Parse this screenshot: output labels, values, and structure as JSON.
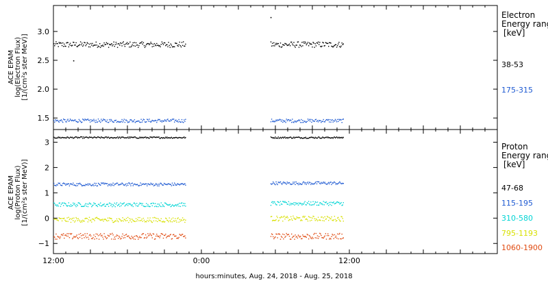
{
  "xlabel": "hours:minutes, Aug. 24, 2018 - Aug. 25, 2018",
  "x_ticks": [
    {
      "hours": 0,
      "label": "12:00"
    },
    {
      "hours": 12,
      "label": "0:00"
    },
    {
      "hours": 24,
      "label": "12:00"
    }
  ],
  "chart_data": [
    {
      "type": "scatter",
      "panel": "electron",
      "instrument": "ACE EPAM",
      "ylabel_line1": "ACE EPAM",
      "ylabel_line2": "log(Electron Flux)",
      "ylabel_line3": "[1/(cm²s ster MeV)]",
      "xlim_hours": [
        0,
        36
      ],
      "ylim": [
        1.3,
        3.45
      ],
      "y_ticks": [
        {
          "value": 1.5,
          "label": "1.5"
        },
        {
          "value": 2.0,
          "label": "2.0"
        },
        {
          "value": 2.5,
          "label": "2.5"
        },
        {
          "value": 3.0,
          "label": "3.0"
        }
      ],
      "legend_title_1": "Electron",
      "legend_title_2": "Energy ranges",
      "legend_unit": "[keV]",
      "data_segments_hours": [
        [
          0,
          10.7
        ],
        [
          17.6,
          23.5
        ]
      ],
      "series": [
        {
          "name": "38-53",
          "color": "#000000",
          "level": 2.78,
          "noise": 0.05
        },
        {
          "name": "175-315",
          "color": "#1e5ad2",
          "level": 1.46,
          "noise": 0.03
        }
      ],
      "annotations": [
        {
          "x_hours": 1.6,
          "y": 2.5,
          "label": "outlier low"
        },
        {
          "x_hours": 17.6,
          "y": 3.25,
          "label": "outlier high"
        }
      ]
    },
    {
      "type": "scatter",
      "panel": "proton",
      "ylabel_line1": "ACE EPAM",
      "ylabel_line2": "log(Proton Flux)",
      "ylabel_line3": "[1/(cm²s ster MeV)]",
      "xlim_hours": [
        0,
        36
      ],
      "ylim": [
        -1.4,
        3.5
      ],
      "y_ticks": [
        {
          "value": -1,
          "label": "−1"
        },
        {
          "value": 0,
          "label": "0"
        },
        {
          "value": 1,
          "label": "1"
        },
        {
          "value": 2,
          "label": "2"
        },
        {
          "value": 3,
          "label": "3"
        }
      ],
      "legend_title_1": "Proton",
      "legend_title_2": "Energy ranges",
      "legend_unit": "[keV]",
      "data_segments_hours": [
        [
          0,
          10.7
        ],
        [
          17.6,
          23.5
        ]
      ],
      "series": [
        {
          "name": "47-68",
          "color": "#000000",
          "level": 3.2,
          "level2": 3.2,
          "noise": 0.03
        },
        {
          "name": "115-195",
          "color": "#1e5ad2",
          "level": 1.35,
          "level2": 1.4,
          "noise": 0.06
        },
        {
          "name": "310-580",
          "color": "#00d4d4",
          "level": 0.55,
          "level2": 0.6,
          "noise": 0.08
        },
        {
          "name": "795-1193",
          "color": "#d8e000",
          "level": -0.05,
          "level2": 0.0,
          "noise": 0.1
        },
        {
          "name": "1060-1900",
          "color": "#e04a10",
          "level": -0.7,
          "level2": -0.7,
          "noise": 0.12
        }
      ]
    }
  ]
}
